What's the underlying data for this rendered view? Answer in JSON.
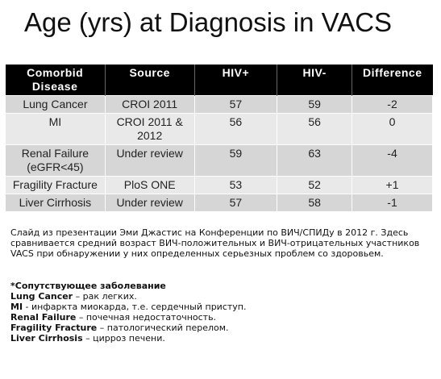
{
  "title": "Age (yrs) at Diagnosis in VACS",
  "table": {
    "headers": [
      "Comorbid Disease",
      "Source",
      "HIV+",
      "HIV-",
      "Difference"
    ],
    "rows": [
      {
        "disease": "Lung Cancer",
        "source": "CROI 2011",
        "hiv_pos": "57",
        "hiv_neg": "59",
        "difference": "-2"
      },
      {
        "disease": "MI",
        "source": "CROI 2011 & 2012",
        "hiv_pos": "56",
        "hiv_neg": "56",
        "difference": "0"
      },
      {
        "disease": "Renal Failure (eGFR<45)",
        "source": "Under review",
        "hiv_pos": "59",
        "hiv_neg": "63",
        "difference": "-4"
      },
      {
        "disease": "Fragility Fracture",
        "source": "PloS ONE",
        "hiv_pos": "53",
        "hiv_neg": "52",
        "difference": "+1"
      },
      {
        "disease": "Liver Cirrhosis",
        "source": "Under review",
        "hiv_pos": "57",
        "hiv_neg": "58",
        "difference": "-1"
      }
    ]
  },
  "note": "Слайд из презентации Эми Джастис на Конференции по ВИЧ/СПИДу в 2012 г. Здесь сравнивается средний возраст ВИЧ-положительных и ВИЧ-отрицательных участников VACS при обнаружении у них определенных серьезных проблем со здоровьем.",
  "definitions": {
    "heading": "*Сопутствующее заболевание",
    "items": [
      {
        "term": "Lung Cancer",
        "text": " – рак легких."
      },
      {
        "term": "MI",
        "text": " - инфаркта миокарда, т.е. сердечный приступ."
      },
      {
        "term": "Renal Failure",
        "text": " – почечная недостаточность."
      },
      {
        "term": "Fragility Fracture",
        "text": " – патологический перелом."
      },
      {
        "term": "Liver Cirrhosis",
        "text": " – цирроз печени."
      }
    ]
  }
}
